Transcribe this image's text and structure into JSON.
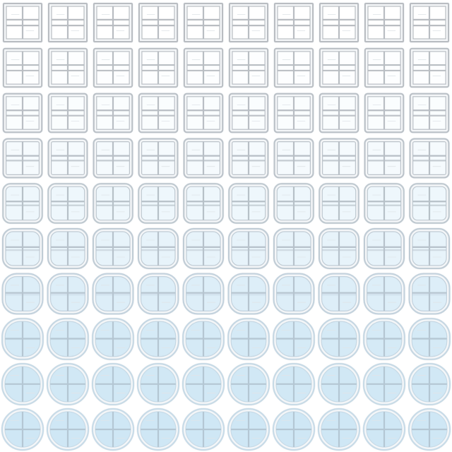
{
  "grid": {
    "rows": 10,
    "columns": 10,
    "subject": "window-morph",
    "start_shape": "square-window-six-pane",
    "end_shape": "round-window-four-pane",
    "colors": {
      "frame_start": "#b9bdc2",
      "frame_end": "#c7dbe8",
      "glass_start": "#ffffff",
      "glass_end": "#cfe7f5",
      "mullion": "#b4c7d4",
      "background": "#ffffff"
    },
    "row_morph_levels": [
      0,
      0.05,
      0.1,
      0.2,
      0.35,
      0.5,
      0.7,
      0.88,
      0.96,
      1
    ]
  }
}
